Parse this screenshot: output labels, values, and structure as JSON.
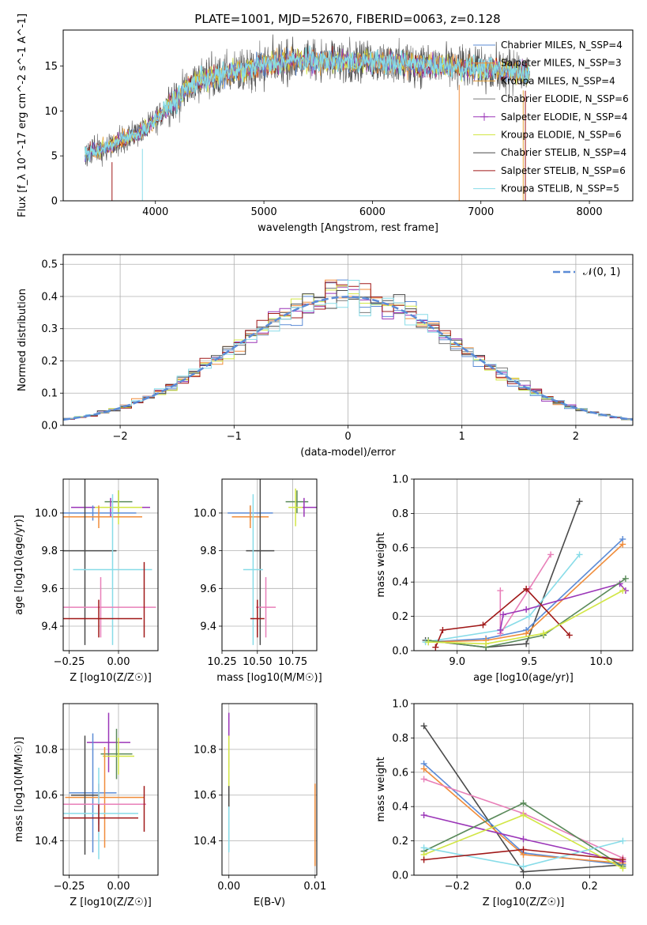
{
  "figure_title": "PLATE=1001, MJD=52670, FIBERID=0063, z=0.128",
  "legend_spectrum": [
    {
      "name": "Chabrier MILES, N_SSP=4",
      "color": "#5b8bd6",
      "marker": "line"
    },
    {
      "name": "Salpeter MILES, N_SSP=3",
      "color": "#f08c3a",
      "marker": "line"
    },
    {
      "name": "Kroupa MILES, N_SSP=4",
      "color": "#e5a33a",
      "marker": "line"
    },
    {
      "name": "Chabrier ELODIE, N_SSP=6",
      "color": "#7a7a7a",
      "marker": "line"
    },
    {
      "name": "Salpeter ELODIE, N_SSP=4",
      "color": "#9b36b8",
      "marker": "plus"
    },
    {
      "name": "Kroupa ELODIE, N_SSP=6",
      "color": "#d2e645",
      "marker": "line"
    },
    {
      "name": "Chabrier STELIB, N_SSP=4",
      "color": "#4a4a4a",
      "marker": "line"
    },
    {
      "name": "Salpeter STELIB, N_SSP=6",
      "color": "#a01818",
      "marker": "line"
    },
    {
      "name": "Kroupa STELIB, N_SSP=5",
      "color": "#88dce8",
      "marker": "line"
    }
  ],
  "chart_data": [
    {
      "id": "spectrum",
      "type": "line",
      "xlabel": "wavelength [Angstrom, rest frame]",
      "ylabel": "Flux [f_λ 10^-17 erg cm^-2 s^-1 A^-1]",
      "xlim": [
        3150,
        8400
      ],
      "ylim": [
        0,
        19
      ],
      "xticks": [
        4000,
        5000,
        6000,
        7000,
        8000
      ],
      "yticks": [
        0,
        5,
        10,
        15
      ],
      "grid": false,
      "legend_position": "top-right",
      "envelope": {
        "x": [
          3350,
          3500,
          3600,
          3700,
          3800,
          3900,
          4000,
          4100,
          4200,
          4300,
          4400,
          4500,
          4700,
          4900,
          5100,
          5300,
          5500,
          5700,
          5900,
          6100,
          6300,
          6500,
          6700,
          6900,
          7100,
          7300,
          7450
        ],
        "y": [
          5.2,
          5.8,
          6.3,
          6.8,
          7.3,
          7.9,
          9.0,
          10.3,
          11.3,
          12.6,
          13.4,
          13.7,
          14.3,
          14.8,
          15.3,
          15.6,
          15.6,
          15.5,
          15.5,
          15.4,
          15.3,
          15.1,
          15.0,
          14.8,
          14.6,
          14.4,
          14.2
        ]
      }
    },
    {
      "id": "residuals",
      "type": "histogram",
      "xlabel": "(data-model)/error",
      "ylabel": "Normed distribution",
      "xlim": [
        -2.5,
        2.5
      ],
      "ylim": [
        0,
        0.53
      ],
      "xticks": [
        -2,
        -1,
        0,
        1,
        2
      ],
      "yticks": [
        0.0,
        0.1,
        0.2,
        0.3,
        0.4,
        0.5
      ],
      "grid": true,
      "legend_position": "top-right",
      "reference_curve": {
        "name": "𝒩(0, 1)",
        "color": "#5b8bd6",
        "style": "dashed"
      },
      "bin_width": 0.1,
      "bin_start": -2.5
    },
    {
      "id": "z_age",
      "type": "errorbar",
      "xlabel": "Z [log10(Z/Z☉)]",
      "ylabel": "age [log10(age/yr)]",
      "xlim": [
        -0.28,
        0.2
      ],
      "ylim": [
        9.27,
        10.18
      ],
      "xticks": [
        -0.25,
        0.0
      ],
      "yticks": [
        9.4,
        9.6,
        9.8,
        10.0
      ],
      "grid": true,
      "points": [
        {
          "x": 0.0,
          "y": 10.06,
          "xerr": 0.07,
          "yerr": 0.06,
          "color": "#5a8a5a"
        },
        {
          "x": -0.04,
          "y": 10.03,
          "xerr": 0.2,
          "yerr": 0.05,
          "color": "#9b36b8"
        },
        {
          "x": 0.0,
          "y": 10.03,
          "xerr": 0.12,
          "yerr": 0.09,
          "color": "#d2e645"
        },
        {
          "x": -0.13,
          "y": 10.0,
          "xerr": 0.22,
          "yerr": 0.04,
          "color": "#5b8bd6"
        },
        {
          "x": -0.1,
          "y": 9.98,
          "xerr": 0.22,
          "yerr": 0.06,
          "color": "#f08c3a"
        },
        {
          "x": -0.17,
          "y": 9.8,
          "xerr": 0.16,
          "yerr": 0.5,
          "color": "#4a4a4a"
        },
        {
          "x": -0.03,
          "y": 9.7,
          "xerr": 0.2,
          "yerr": 0.4,
          "color": "#88dce8"
        },
        {
          "x": -0.09,
          "y": 9.5,
          "xerr": 0.28,
          "yerr": 0.16,
          "color": "#e87fb8"
        },
        {
          "x": -0.1,
          "y": 9.44,
          "xerr": 0.22,
          "yerr": 0.1,
          "color": "#a01818"
        },
        {
          "x": 0.13,
          "y": 9.54,
          "xerr": 0.0,
          "yerr": 0.2,
          "color": "#a01818"
        }
      ]
    },
    {
      "id": "mass_age",
      "type": "errorbar",
      "xlabel": "mass [log10(M/M☉)]",
      "ylabel": "",
      "xlim": [
        10.25,
        10.92
      ],
      "ylim": [
        9.27,
        10.18
      ],
      "xticks": [
        10.25,
        10.5,
        10.75
      ],
      "yticks": [
        9.4,
        9.6,
        9.8,
        10.0
      ],
      "grid": true,
      "points": [
        {
          "x": 10.78,
          "y": 10.06,
          "xerr": 0.08,
          "yerr": 0.06,
          "color": "#5a8a5a"
        },
        {
          "x": 10.83,
          "y": 10.03,
          "xerr": 0.09,
          "yerr": 0.05,
          "color": "#9b36b8"
        },
        {
          "x": 10.77,
          "y": 10.03,
          "xerr": 0.05,
          "yerr": 0.1,
          "color": "#d2e645"
        },
        {
          "x": 10.45,
          "y": 10.0,
          "xerr": 0.16,
          "yerr": 0.04,
          "color": "#5b8bd6"
        },
        {
          "x": 10.45,
          "y": 9.98,
          "xerr": 0.13,
          "yerr": 0.06,
          "color": "#f08c3a"
        },
        {
          "x": 10.52,
          "y": 9.8,
          "xerr": 0.1,
          "yerr": 0.5,
          "color": "#4a4a4a"
        },
        {
          "x": 10.47,
          "y": 9.7,
          "xerr": 0.07,
          "yerr": 0.4,
          "color": "#88dce8"
        },
        {
          "x": 10.56,
          "y": 9.5,
          "xerr": 0.07,
          "yerr": 0.16,
          "color": "#e87fb8"
        },
        {
          "x": 10.5,
          "y": 9.44,
          "xerr": 0.05,
          "yerr": 0.1,
          "color": "#a01818"
        }
      ]
    },
    {
      "id": "age_weight",
      "type": "line",
      "xlabel": "age [log10(age/yr)]",
      "ylabel": "mass weight",
      "xlim": [
        8.7,
        10.22
      ],
      "ylim": [
        0,
        1.0
      ],
      "xticks": [
        9.0,
        9.5,
        10.0
      ],
      "yticks": [
        0.0,
        0.2,
        0.4,
        0.6,
        0.8,
        1.0
      ],
      "grid": true,
      "series": [
        {
          "color": "#4a4a4a",
          "x": [
            8.78,
            9.2,
            9.48,
            9.85
          ],
          "y": [
            0.06,
            0.02,
            0.04,
            0.87
          ]
        },
        {
          "color": "#5b8bd6",
          "x": [
            8.8,
            9.2,
            9.48,
            10.15
          ],
          "y": [
            0.05,
            0.07,
            0.12,
            0.65
          ]
        },
        {
          "color": "#f08c3a",
          "x": [
            8.8,
            9.2,
            9.48,
            10.15
          ],
          "y": [
            0.05,
            0.06,
            0.1,
            0.62
          ]
        },
        {
          "color": "#88dce8",
          "x": [
            8.78,
            9.3,
            9.5,
            9.85
          ],
          "y": [
            0.05,
            0.12,
            0.2,
            0.56
          ]
        },
        {
          "color": "#e87fb8",
          "x": [
            9.3,
            9.3,
            9.5,
            9.65
          ],
          "y": [
            0.35,
            0.1,
            0.36,
            0.56
          ]
        },
        {
          "color": "#9b36b8",
          "x": [
            9.3,
            9.32,
            9.48,
            10.13,
            10.17
          ],
          "y": [
            0.12,
            0.21,
            0.24,
            0.39,
            0.35
          ]
        },
        {
          "color": "#a01818",
          "x": [
            8.85,
            8.9,
            9.18,
            9.48,
            9.78
          ],
          "y": [
            0.02,
            0.12,
            0.15,
            0.36,
            0.09
          ]
        },
        {
          "color": "#5a8a5a",
          "x": [
            8.8,
            9.2,
            9.6,
            10.17
          ],
          "y": [
            0.06,
            0.02,
            0.09,
            0.42
          ]
        },
        {
          "color": "#d2e645",
          "x": [
            8.8,
            9.2,
            9.6,
            10.15
          ],
          "y": [
            0.05,
            0.04,
            0.1,
            0.35
          ]
        }
      ]
    },
    {
      "id": "z_mass",
      "type": "errorbar",
      "xlabel": "Z [log10(Z/Z☉)]",
      "ylabel": "mass [log10(M/M☉)]",
      "xlim": [
        -0.28,
        0.2
      ],
      "ylim": [
        10.25,
        11.0
      ],
      "xticks": [
        -0.25,
        0.0
      ],
      "yticks": [
        10.4,
        10.6,
        10.8
      ],
      "grid": true,
      "points": [
        {
          "x": -0.05,
          "y": 10.83,
          "xerr": 0.11,
          "yerr": 0.13,
          "color": "#9b36b8"
        },
        {
          "x": -0.01,
          "y": 10.78,
          "xerr": 0.08,
          "yerr": 0.11,
          "color": "#5a8a5a"
        },
        {
          "x": 0.0,
          "y": 10.77,
          "xerr": 0.08,
          "yerr": 0.08,
          "color": "#d2e645"
        },
        {
          "x": -0.13,
          "y": 10.61,
          "xerr": 0.12,
          "yerr": 0.26,
          "color": "#5b8bd6"
        },
        {
          "x": -0.07,
          "y": 10.59,
          "xerr": 0.2,
          "yerr": 0.22,
          "color": "#f08c3a"
        },
        {
          "x": -0.17,
          "y": 10.6,
          "xerr": 0.07,
          "yerr": 0.26,
          "color": "#4a4a4a"
        },
        {
          "x": -0.1,
          "y": 10.56,
          "xerr": 0.24,
          "yerr": 0.09,
          "color": "#e87fb8"
        },
        {
          "x": -0.1,
          "y": 10.52,
          "xerr": 0.2,
          "yerr": 0.2,
          "color": "#88dce8"
        },
        {
          "x": -0.1,
          "y": 10.5,
          "xerr": 0.2,
          "yerr": 0.06,
          "color": "#a01818"
        },
        {
          "x": 0.13,
          "y": 10.54,
          "xerr": 0.0,
          "yerr": 0.1,
          "color": "#a01818"
        }
      ]
    },
    {
      "id": "ebv_mass",
      "type": "errorbar",
      "xlabel": "E(B-V)",
      "ylabel": "",
      "xlim": [
        -0.0008,
        0.0102
      ],
      "ylim": [
        10.25,
        11.0
      ],
      "xticks": [
        0.0,
        0.01
      ],
      "xticklabels": [
        "0.00",
        "0.01"
      ],
      "yticks": [
        10.4,
        10.6,
        10.8
      ],
      "grid": true,
      "points": [
        {
          "x": 0.0,
          "y": 10.84,
          "xerr": 0.0,
          "yerr": 0.12,
          "color": "#9b36b8"
        },
        {
          "x": 0.0,
          "y": 10.7,
          "xerr": 0.0,
          "yerr": 0.16,
          "color": "#d2e645"
        },
        {
          "x": 0.0,
          "y": 10.5,
          "xerr": 0.0,
          "yerr": 0.14,
          "color": "#4a4a4a"
        },
        {
          "x": 0.0,
          "y": 10.45,
          "xerr": 0.0,
          "yerr": 0.1,
          "color": "#88dce8"
        },
        {
          "x": 0.01,
          "y": 10.47,
          "xerr": 0.0,
          "yerr": 0.18,
          "color": "#f08c3a"
        }
      ]
    },
    {
      "id": "z_weight",
      "type": "line",
      "xlabel": "Z [log10(Z/Z☉)]",
      "ylabel": "mass weight",
      "xlim": [
        -0.33,
        0.33
      ],
      "ylim": [
        0,
        1.0
      ],
      "xticks": [
        -0.2,
        0.0,
        0.2
      ],
      "yticks": [
        0.0,
        0.2,
        0.4,
        0.6,
        0.8,
        1.0
      ],
      "grid": true,
      "series": [
        {
          "color": "#4a4a4a",
          "x": [
            -0.3,
            0.0,
            0.3
          ],
          "y": [
            0.87,
            0.02,
            0.06
          ]
        },
        {
          "color": "#5b8bd6",
          "x": [
            -0.3,
            0.0,
            0.3
          ],
          "y": [
            0.65,
            0.13,
            0.06
          ]
        },
        {
          "color": "#f08c3a",
          "x": [
            -0.3,
            0.0,
            0.3
          ],
          "y": [
            0.62,
            0.12,
            0.07
          ]
        },
        {
          "color": "#e87fb8",
          "x": [
            -0.3,
            0.0,
            0.3
          ],
          "y": [
            0.56,
            0.36,
            0.1
          ]
        },
        {
          "color": "#9b36b8",
          "x": [
            -0.3,
            0.0,
            0.3
          ],
          "y": [
            0.35,
            0.21,
            0.08
          ]
        },
        {
          "color": "#5a8a5a",
          "x": [
            -0.3,
            0.0,
            0.3
          ],
          "y": [
            0.14,
            0.42,
            0.05
          ]
        },
        {
          "color": "#d2e645",
          "x": [
            -0.3,
            0.0,
            0.3
          ],
          "y": [
            0.12,
            0.35,
            0.04
          ]
        },
        {
          "color": "#88dce8",
          "x": [
            -0.3,
            0.0,
            0.3
          ],
          "y": [
            0.16,
            0.05,
            0.2
          ]
        },
        {
          "color": "#a01818",
          "x": [
            -0.3,
            0.0,
            0.3
          ],
          "y": [
            0.09,
            0.15,
            0.09
          ]
        }
      ]
    }
  ]
}
